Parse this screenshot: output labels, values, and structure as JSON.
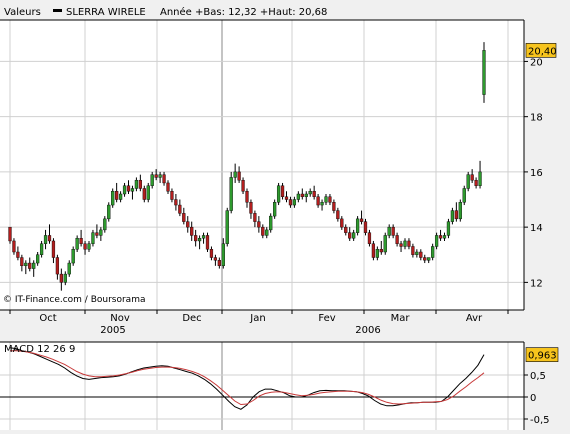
{
  "header": {
    "label": "Valeurs",
    "series_name": "SLERRA WIRELE",
    "range_text": "Année +Bas: 12,32 +Haut: 20,68"
  },
  "credit": "© IT-Finance.com / Boursorama",
  "colors": {
    "background": "#f0f0f0",
    "plot_bg": "#ffffff",
    "grid": "#d0d0d0",
    "up_candle": "#2e9a2e",
    "down_candle": "#b21e1e",
    "wick": "#000000",
    "price_badge": "#f7c41d",
    "macd_line": "#000000",
    "signal_line": "#c83a3a"
  },
  "chart_data": [
    {
      "type": "candlestick",
      "title": "SLERRA WIRELE",
      "x_tick_labels": [
        "Oct",
        "Nov",
        "Dec",
        "Jan",
        "Fev",
        "Mar",
        "Avr"
      ],
      "x_year_labels": [
        "2005",
        "2006"
      ],
      "y_tick_labels": [
        "12",
        "14",
        "16",
        "18",
        "20"
      ],
      "ylim": [
        11.0,
        21.5
      ],
      "grid": true,
      "last_value_label": "20,40",
      "last_value": 20.4,
      "year_low": 12.32,
      "year_high": 20.68,
      "candles": [
        [
          14.0,
          13.9,
          13.4,
          13.5
        ],
        [
          13.5,
          13.6,
          13.0,
          13.1
        ],
        [
          13.1,
          13.3,
          12.8,
          12.9
        ],
        [
          12.9,
          13.0,
          12.4,
          12.6
        ],
        [
          12.6,
          12.8,
          12.3,
          12.7
        ],
        [
          12.7,
          12.9,
          12.4,
          12.5
        ],
        [
          12.5,
          12.8,
          12.2,
          12.7
        ],
        [
          12.7,
          13.1,
          12.6,
          13.0
        ],
        [
          13.0,
          13.5,
          12.9,
          13.4
        ],
        [
          13.4,
          13.9,
          13.2,
          13.7
        ],
        [
          13.7,
          14.1,
          13.4,
          13.5
        ],
        [
          13.5,
          13.6,
          12.7,
          12.9
        ],
        [
          12.9,
          13.0,
          12.1,
          12.3
        ],
        [
          12.3,
          12.5,
          11.7,
          12.0
        ],
        [
          12.0,
          12.4,
          11.9,
          12.3
        ],
        [
          12.3,
          12.8,
          12.2,
          12.7
        ],
        [
          12.7,
          13.3,
          12.6,
          13.2
        ],
        [
          13.2,
          13.7,
          13.1,
          13.6
        ],
        [
          13.6,
          13.9,
          13.3,
          13.4
        ],
        [
          13.4,
          13.5,
          13.0,
          13.2
        ],
        [
          13.2,
          13.5,
          13.1,
          13.4
        ],
        [
          13.4,
          13.9,
          13.3,
          13.8
        ],
        [
          13.8,
          14.1,
          13.6,
          13.7
        ],
        [
          13.7,
          14.0,
          13.5,
          13.9
        ],
        [
          13.9,
          14.4,
          13.8,
          14.3
        ],
        [
          14.3,
          14.9,
          14.2,
          14.8
        ],
        [
          14.8,
          15.4,
          14.7,
          15.3
        ],
        [
          15.3,
          15.6,
          14.9,
          15.0
        ],
        [
          15.0,
          15.3,
          14.9,
          15.2
        ],
        [
          15.2,
          15.6,
          15.1,
          15.5
        ],
        [
          15.5,
          15.7,
          15.2,
          15.3
        ],
        [
          15.3,
          15.5,
          15.0,
          15.4
        ],
        [
          15.4,
          15.8,
          15.3,
          15.7
        ],
        [
          15.7,
          15.9,
          15.3,
          15.4
        ],
        [
          15.4,
          15.5,
          14.9,
          15.0
        ],
        [
          15.0,
          15.6,
          14.9,
          15.5
        ],
        [
          15.5,
          16.0,
          15.4,
          15.9
        ],
        [
          15.9,
          16.1,
          15.7,
          15.8
        ],
        [
          15.8,
          16.0,
          15.6,
          15.9
        ],
        [
          15.9,
          16.0,
          15.5,
          15.6
        ],
        [
          15.6,
          15.7,
          15.2,
          15.3
        ],
        [
          15.3,
          15.4,
          14.9,
          15.0
        ],
        [
          15.0,
          15.2,
          14.6,
          14.8
        ],
        [
          14.8,
          15.0,
          14.4,
          14.5
        ],
        [
          14.5,
          14.7,
          14.1,
          14.2
        ],
        [
          14.2,
          14.4,
          13.8,
          14.0
        ],
        [
          14.0,
          14.2,
          13.5,
          13.7
        ],
        [
          13.7,
          13.9,
          13.3,
          13.5
        ],
        [
          13.5,
          13.7,
          13.2,
          13.6
        ],
        [
          13.6,
          13.8,
          13.4,
          13.7
        ],
        [
          13.7,
          13.8,
          13.1,
          13.2
        ],
        [
          13.2,
          13.3,
          12.8,
          12.9
        ],
        [
          12.9,
          13.0,
          12.6,
          12.8
        ],
        [
          12.8,
          12.9,
          12.5,
          12.6
        ],
        [
          12.6,
          13.6,
          12.5,
          13.4
        ],
        [
          13.4,
          14.7,
          13.3,
          14.6
        ],
        [
          14.6,
          16.0,
          14.5,
          15.8
        ],
        [
          15.8,
          16.3,
          15.6,
          16.0
        ],
        [
          16.0,
          16.2,
          15.6,
          15.7
        ],
        [
          15.7,
          15.8,
          15.2,
          15.3
        ],
        [
          15.3,
          15.4,
          14.7,
          14.9
        ],
        [
          14.9,
          15.0,
          14.3,
          14.5
        ],
        [
          14.5,
          14.6,
          14.0,
          14.2
        ],
        [
          14.2,
          14.4,
          13.8,
          14.0
        ],
        [
          14.0,
          14.1,
          13.6,
          13.7
        ],
        [
          13.7,
          14.0,
          13.6,
          13.9
        ],
        [
          13.9,
          14.5,
          13.8,
          14.4
        ],
        [
          14.4,
          15.0,
          14.3,
          14.9
        ],
        [
          14.9,
          15.6,
          14.8,
          15.5
        ],
        [
          15.5,
          15.6,
          15.0,
          15.1
        ],
        [
          15.1,
          15.3,
          14.9,
          15.0
        ],
        [
          15.0,
          15.1,
          14.7,
          14.8
        ],
        [
          14.8,
          15.1,
          14.7,
          15.0
        ],
        [
          15.0,
          15.3,
          14.9,
          15.2
        ],
        [
          15.2,
          15.4,
          15.0,
          15.1
        ],
        [
          15.1,
          15.3,
          14.9,
          15.2
        ],
        [
          15.2,
          15.4,
          15.1,
          15.3
        ],
        [
          15.3,
          15.5,
          15.0,
          15.1
        ],
        [
          15.1,
          15.2,
          14.7,
          14.8
        ],
        [
          14.8,
          15.0,
          14.6,
          14.9
        ],
        [
          14.9,
          15.2,
          14.8,
          15.1
        ],
        [
          15.1,
          15.2,
          14.8,
          14.9
        ],
        [
          14.9,
          15.0,
          14.5,
          14.6
        ],
        [
          14.6,
          14.7,
          14.2,
          14.3
        ],
        [
          14.3,
          14.4,
          13.9,
          14.0
        ],
        [
          14.0,
          14.1,
          13.7,
          13.8
        ],
        [
          13.8,
          14.0,
          13.5,
          13.6
        ],
        [
          13.6,
          13.9,
          13.5,
          13.8
        ],
        [
          13.8,
          14.4,
          13.7,
          14.3
        ],
        [
          14.3,
          14.6,
          14.1,
          14.2
        ],
        [
          14.2,
          14.3,
          13.7,
          13.8
        ],
        [
          13.8,
          13.9,
          13.3,
          13.4
        ],
        [
          13.4,
          13.5,
          12.8,
          12.9
        ],
        [
          12.9,
          13.3,
          12.8,
          13.2
        ],
        [
          13.2,
          13.5,
          13.0,
          13.1
        ],
        [
          13.1,
          13.8,
          13.0,
          13.7
        ],
        [
          13.7,
          14.1,
          13.6,
          14.0
        ],
        [
          14.0,
          14.1,
          13.6,
          13.7
        ],
        [
          13.7,
          13.8,
          13.3,
          13.4
        ],
        [
          13.4,
          13.5,
          13.1,
          13.3
        ],
        [
          13.3,
          13.6,
          13.2,
          13.5
        ],
        [
          13.5,
          13.6,
          13.2,
          13.3
        ],
        [
          13.3,
          13.4,
          12.9,
          13.0
        ],
        [
          13.0,
          13.2,
          12.9,
          13.1
        ],
        [
          13.1,
          13.2,
          12.8,
          12.9
        ],
        [
          12.9,
          13.0,
          12.7,
          12.8
        ],
        [
          12.8,
          12.9,
          12.7,
          12.9
        ],
        [
          12.9,
          13.4,
          12.8,
          13.3
        ],
        [
          13.3,
          13.8,
          13.2,
          13.7
        ],
        [
          13.7,
          13.9,
          13.5,
          13.6
        ],
        [
          13.6,
          13.8,
          13.5,
          13.7
        ],
        [
          13.7,
          14.3,
          13.6,
          14.2
        ],
        [
          14.2,
          14.7,
          14.1,
          14.6
        ],
        [
          14.6,
          14.9,
          14.2,
          14.3
        ],
        [
          14.3,
          15.0,
          14.2,
          14.9
        ],
        [
          14.9,
          15.5,
          14.8,
          15.4
        ],
        [
          15.4,
          16.0,
          15.3,
          15.9
        ],
        [
          15.9,
          16.1,
          15.6,
          15.7
        ],
        [
          15.7,
          15.8,
          15.4,
          15.5
        ],
        [
          15.5,
          16.4,
          15.4,
          16.0
        ],
        [
          18.8,
          20.7,
          18.5,
          20.4
        ]
      ]
    },
    {
      "type": "line",
      "title": "MACD 12 26 9",
      "y_tick_labels": [
        "-0,5",
        "0",
        "0,5"
      ],
      "ylim": [
        -0.75,
        1.25
      ],
      "last_value_label": "0,963",
      "last_value": 0.963,
      "series": [
        {
          "role": "macd",
          "values": [
            1.12,
            1.1,
            1.05,
            1.02,
            0.98,
            0.92,
            0.86,
            0.8,
            0.74,
            0.66,
            0.56,
            0.48,
            0.42,
            0.4,
            0.42,
            0.44,
            0.45,
            0.46,
            0.48,
            0.52,
            0.57,
            0.62,
            0.66,
            0.68,
            0.7,
            0.71,
            0.7,
            0.66,
            0.62,
            0.58,
            0.54,
            0.48,
            0.4,
            0.3,
            0.18,
            0.04,
            -0.1,
            -0.22,
            -0.28,
            -0.18,
            0.0,
            0.12,
            0.18,
            0.18,
            0.14,
            0.1,
            0.03,
            0.0,
            0.0,
            0.04,
            0.1,
            0.14,
            0.15,
            0.14,
            0.14,
            0.14,
            0.13,
            0.12,
            0.08,
            0.02,
            -0.08,
            -0.16,
            -0.2,
            -0.2,
            -0.18,
            -0.15,
            -0.13,
            -0.13,
            -0.12,
            -0.12,
            -0.12,
            -0.1,
            0.0,
            0.15,
            0.3,
            0.42,
            0.56,
            0.72,
            0.963
          ]
        },
        {
          "role": "signal",
          "values": [
            1.05,
            1.05,
            1.04,
            1.02,
            0.99,
            0.95,
            0.91,
            0.86,
            0.8,
            0.74,
            0.66,
            0.58,
            0.52,
            0.48,
            0.46,
            0.46,
            0.47,
            0.48,
            0.5,
            0.53,
            0.56,
            0.6,
            0.63,
            0.65,
            0.67,
            0.68,
            0.68,
            0.67,
            0.65,
            0.62,
            0.58,
            0.53,
            0.46,
            0.37,
            0.27,
            0.15,
            0.03,
            -0.09,
            -0.17,
            -0.16,
            -0.08,
            0.02,
            0.08,
            0.11,
            0.12,
            0.11,
            0.08,
            0.05,
            0.03,
            0.04,
            0.06,
            0.09,
            0.11,
            0.12,
            0.13,
            0.13,
            0.13,
            0.12,
            0.1,
            0.06,
            0.0,
            -0.07,
            -0.12,
            -0.15,
            -0.16,
            -0.15,
            -0.14,
            -0.13,
            -0.12,
            -0.12,
            -0.11,
            -0.1,
            -0.06,
            0.02,
            0.13,
            0.23,
            0.34,
            0.44,
            0.55
          ]
        }
      ]
    }
  ]
}
